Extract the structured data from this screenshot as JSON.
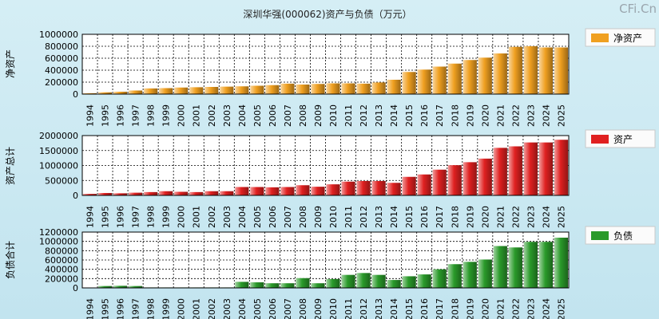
{
  "title": "深圳华强(000062)资产与负债（万元）",
  "watermark": "CFi.Cn",
  "categories": [
    "1994",
    "1995",
    "1996",
    "1997",
    "1998",
    "1999",
    "2000",
    "2001",
    "2002",
    "2003",
    "2004",
    "2005",
    "2006",
    "2007",
    "2008",
    "2009",
    "2010",
    "2011",
    "2012",
    "2013",
    "2014",
    "2015",
    "2016",
    "2017",
    "2018",
    "2019",
    "2020",
    "2021",
    "2022",
    "2023",
    "2024",
    "2025"
  ],
  "chart_data": [
    {
      "type": "bar",
      "ylabel": "净资产",
      "legend": "净资产",
      "color": "#f0a020",
      "ylim": [
        0,
        1000000
      ],
      "yticks": [
        0,
        200000,
        400000,
        600000,
        800000,
        1000000
      ],
      "values": [
        15000,
        30000,
        40000,
        60000,
        95000,
        100000,
        110000,
        115000,
        120000,
        125000,
        130000,
        140000,
        150000,
        175000,
        160000,
        170000,
        180000,
        180000,
        175000,
        195000,
        240000,
        370000,
        410000,
        460000,
        510000,
        570000,
        610000,
        680000,
        790000,
        800000,
        780000,
        780000
      ]
    },
    {
      "type": "bar",
      "ylabel": "资产总计",
      "legend": "资产",
      "color": "#e02020",
      "ylim": [
        0,
        2000000
      ],
      "yticks": [
        0,
        500000,
        1000000,
        1500000,
        2000000
      ],
      "values": [
        50000,
        80000,
        70000,
        90000,
        110000,
        140000,
        120000,
        110000,
        140000,
        140000,
        280000,
        280000,
        270000,
        280000,
        340000,
        290000,
        370000,
        460000,
        480000,
        480000,
        420000,
        620000,
        700000,
        860000,
        1010000,
        1110000,
        1230000,
        1590000,
        1640000,
        1770000,
        1770000,
        1860000
      ]
    },
    {
      "type": "bar",
      "ylabel": "负债合计",
      "legend": "负债",
      "color": "#2a9a2a",
      "ylim": [
        0,
        1200000
      ],
      "yticks": [
        0,
        200000,
        400000,
        600000,
        800000,
        1000000,
        1200000
      ],
      "values": [
        0,
        40000,
        45000,
        40000,
        10000,
        10000,
        10000,
        10000,
        10000,
        10000,
        130000,
        120000,
        100000,
        100000,
        210000,
        100000,
        190000,
        280000,
        320000,
        280000,
        170000,
        250000,
        290000,
        400000,
        510000,
        560000,
        610000,
        900000,
        870000,
        990000,
        990000,
        1080000
      ]
    }
  ]
}
